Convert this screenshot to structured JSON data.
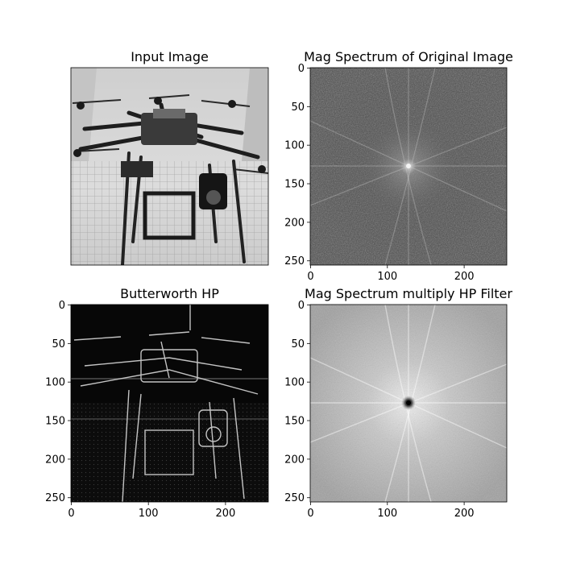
{
  "figure": {
    "background": "#ffffff"
  },
  "chart_data": [
    {
      "type": "heatmap",
      "title": "Input Image",
      "content": "photo of a hexacopter drone on a grid background (grayscale)",
      "axes_visible": false,
      "colormap": "gray",
      "xlim": [
        0,
        255
      ],
      "ylim": [
        255,
        0
      ]
    },
    {
      "type": "heatmap",
      "title": "Mag Spectrum of Original Image",
      "content": "FFT magnitude spectrum, bright center with radiating streaks",
      "axes_visible": true,
      "colormap": "gray",
      "xlim": [
        0,
        255
      ],
      "ylim": [
        255,
        0
      ],
      "xticks": [
        0,
        100,
        200
      ],
      "yticks": [
        0,
        50,
        100,
        150,
        200,
        250
      ]
    },
    {
      "type": "heatmap",
      "title": "Butterworth HP",
      "content": "high-pass filtered image showing edges on dark background",
      "axes_visible": true,
      "colormap": "gray",
      "xlim": [
        0,
        255
      ],
      "ylim": [
        255,
        0
      ],
      "xticks": [
        0,
        100,
        200
      ],
      "yticks": [
        0,
        50,
        100,
        150,
        200,
        250
      ]
    },
    {
      "type": "heatmap",
      "title": "Mag Spectrum multiply HP Filter",
      "content": "spectrum with dark center notch after high-pass filtering",
      "axes_visible": true,
      "colormap": "gray",
      "xlim": [
        0,
        255
      ],
      "ylim": [
        255,
        0
      ],
      "xticks": [
        0,
        100,
        200
      ],
      "yticks": [
        0,
        50,
        100,
        150,
        200,
        250
      ]
    }
  ]
}
